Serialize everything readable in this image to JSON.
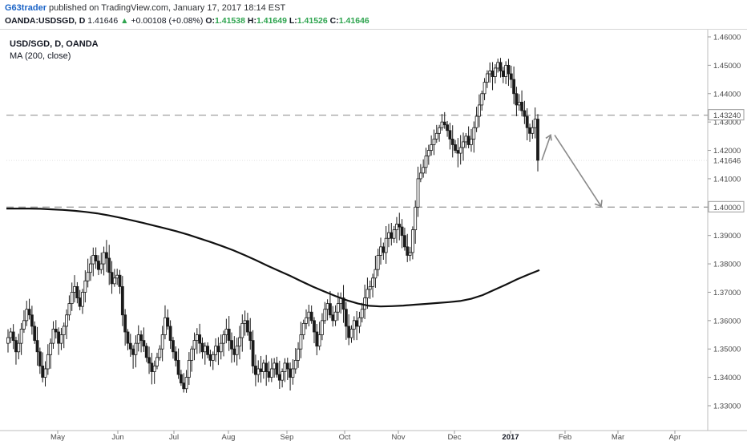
{
  "header": {
    "author": "G63trader",
    "published_text": " published on TradingView.com, January 17, 2017 18:14 EST",
    "symbol": "OANDA:USDSGD, D",
    "last": "1.41646",
    "change": "+0.00108 (+0.08%)",
    "o_label": "O:",
    "o": "1.41538",
    "h_label": "H:",
    "h": "1.41649",
    "l_label": "L:",
    "l": "1.41526",
    "c_label": "C:",
    "c": "1.41646"
  },
  "legend": {
    "title": "USD/SGD, D, OANDA",
    "indicator": "MA (200, close)"
  },
  "colors": {
    "candle": "#1a1a1a",
    "ma": "#111111",
    "level_line": "#a0a0a0",
    "arrow": "#8a8a8a",
    "up_green": "#2ea44f"
  },
  "chart_data": {
    "type": "candlestick",
    "title": "USD/SGD, D, OANDA",
    "ylim": [
      1.325,
      1.4625
    ],
    "y_ticks": [
      "1.46000",
      "1.45000",
      "1.44000",
      "1.43000",
      "1.42000",
      "1.41000",
      "1.40000",
      "1.39000",
      "1.38000",
      "1.37000",
      "1.36000",
      "1.35000",
      "1.34000",
      "1.33000"
    ],
    "y_tick_values": [
      1.46,
      1.45,
      1.44,
      1.43,
      1.42,
      1.41,
      1.4,
      1.39,
      1.38,
      1.37,
      1.36,
      1.35,
      1.34,
      1.33
    ],
    "x_ticks": [
      "May",
      "Jun",
      "Jul",
      "Aug",
      "Sep",
      "Oct",
      "Nov",
      "Dec",
      "2017",
      "Feb",
      "Mar",
      "Apr"
    ],
    "x_tick_bold": [
      false,
      false,
      false,
      false,
      false,
      false,
      false,
      false,
      true,
      false,
      false,
      false
    ],
    "price_labels": [
      {
        "text": "1.43240",
        "value": 1.4324,
        "boxed": true
      },
      {
        "text": "1.41646",
        "value": 1.41646,
        "boxed": false
      },
      {
        "text": "1.40000",
        "value": 1.4,
        "boxed": true
      }
    ],
    "horizontal_levels": [
      1.4324,
      1.4
    ],
    "close_series": [
      1.354,
      1.356,
      1.353,
      1.349,
      1.352,
      1.357,
      1.36,
      1.364,
      1.362,
      1.358,
      1.353,
      1.349,
      1.344,
      1.34,
      1.343,
      1.348,
      1.352,
      1.357,
      1.356,
      1.352,
      1.355,
      1.358,
      1.362,
      1.366,
      1.37,
      1.372,
      1.368,
      1.365,
      1.37,
      1.374,
      1.377,
      1.38,
      1.383,
      1.381,
      1.378,
      1.38,
      1.384,
      1.382,
      1.377,
      1.373,
      1.375,
      1.376,
      1.372,
      1.362,
      1.356,
      1.352,
      1.35,
      1.348,
      1.352,
      1.355,
      1.353,
      1.351,
      1.347,
      1.345,
      1.342,
      1.344,
      1.347,
      1.35,
      1.355,
      1.361,
      1.358,
      1.353,
      1.349,
      1.346,
      1.341,
      1.338,
      1.336,
      1.34,
      1.346,
      1.35,
      1.353,
      1.355,
      1.352,
      1.349,
      1.351,
      1.348,
      1.346,
      1.348,
      1.351,
      1.349,
      1.352,
      1.355,
      1.357,
      1.353,
      1.35,
      1.348,
      1.351,
      1.354,
      1.359,
      1.36,
      1.356,
      1.353,
      1.344,
      1.341,
      1.343,
      1.342,
      1.345,
      1.342,
      1.34,
      1.343,
      1.345,
      1.341,
      1.339,
      1.342,
      1.345,
      1.343,
      1.34,
      1.343,
      1.346,
      1.35,
      1.355,
      1.359,
      1.361,
      1.363,
      1.36,
      1.356,
      1.351,
      1.355,
      1.36,
      1.364,
      1.366,
      1.362,
      1.36,
      1.363,
      1.366,
      1.368,
      1.364,
      1.358,
      1.354,
      1.357,
      1.36,
      1.358,
      1.361,
      1.364,
      1.368,
      1.371,
      1.372,
      1.375,
      1.378,
      1.383,
      1.386,
      1.384,
      1.389,
      1.391,
      1.389,
      1.392,
      1.394,
      1.393,
      1.39,
      1.386,
      1.383,
      1.384,
      1.392,
      1.4,
      1.41,
      1.412,
      1.414,
      1.418,
      1.42,
      1.422,
      1.424,
      1.426,
      1.428,
      1.43,
      1.429,
      1.427,
      1.424,
      1.422,
      1.42,
      1.419,
      1.421,
      1.423,
      1.425,
      1.422,
      1.424,
      1.428,
      1.432,
      1.436,
      1.44,
      1.444,
      1.447,
      1.448,
      1.446,
      1.449,
      1.451,
      1.448,
      1.446,
      1.45,
      1.447,
      1.445,
      1.44,
      1.436,
      1.437,
      1.434,
      1.432,
      1.428,
      1.426,
      1.428,
      1.431,
      1.4165
    ],
    "ma_series": [
      1.3995,
      1.3995,
      1.3995,
      1.3994,
      1.3992,
      1.399,
      1.3987,
      1.3983,
      1.3978,
      1.3971,
      1.3963,
      1.3954,
      1.3945,
      1.3935,
      1.3925,
      1.3915,
      1.3903,
      1.389,
      1.3877,
      1.3863,
      1.3848,
      1.3831,
      1.3813,
      1.3794,
      1.3776,
      1.3758,
      1.3739,
      1.372,
      1.3703,
      1.3687,
      1.3672,
      1.366,
      1.3652,
      1.365,
      1.3651,
      1.3653,
      1.3656,
      1.3659,
      1.3662,
      1.3665,
      1.3669,
      1.3677,
      1.369,
      1.3708,
      1.3726,
      1.3745,
      1.3762,
      1.3778
    ]
  },
  "annotations": {
    "arrow1": {
      "from": [
        1.4165
      ],
      "to": [
        1.4254
      ]
    },
    "arrow2": {
      "from": [
        1.4254
      ],
      "to": [
        1.4003
      ]
    }
  }
}
